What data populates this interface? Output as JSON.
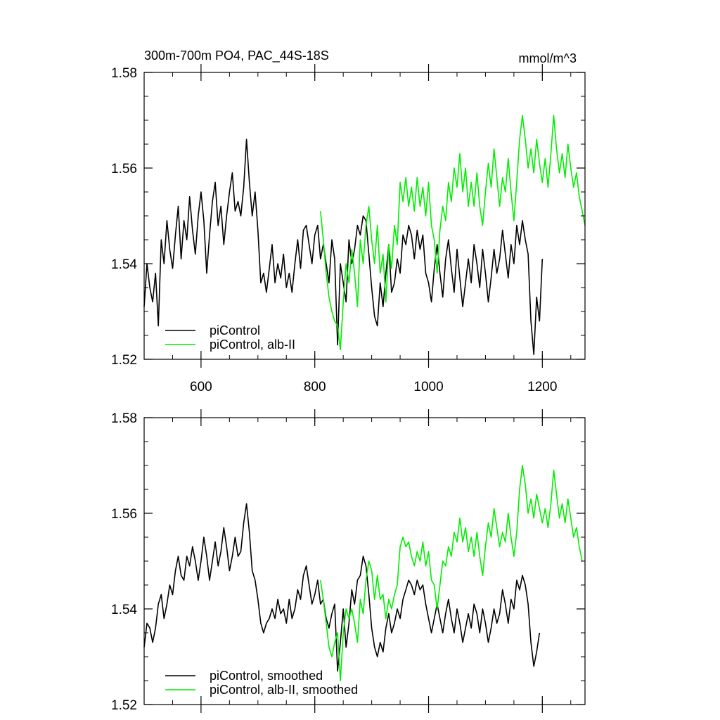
{
  "colors": {
    "control": "#000000",
    "alb": "#00ee00"
  },
  "chart_data": [
    {
      "type": "line",
      "title": "300m-700m PO4, PAC_44S-18S",
      "units": "mmol/m^3",
      "xlim": [
        500,
        1275
      ],
      "ylim": [
        1.52,
        1.58
      ],
      "xticks": [
        "600",
        "800",
        "1000",
        "1200"
      ],
      "xtick_values": [
        600,
        800,
        1000,
        1200
      ],
      "yticks": [
        "1.52",
        "1.54",
        "1.56",
        "1.58"
      ],
      "ytick_values": [
        1.52,
        1.54,
        1.56,
        1.58
      ],
      "legend_position": "bottom-left",
      "series": [
        {
          "name": "piControl",
          "color": "#000000",
          "x": [
            500,
            505,
            510,
            515,
            520,
            525,
            530,
            535,
            540,
            545,
            550,
            555,
            560,
            565,
            570,
            575,
            580,
            585,
            590,
            595,
            600,
            605,
            610,
            615,
            620,
            625,
            630,
            635,
            640,
            645,
            650,
            655,
            660,
            665,
            670,
            675,
            680,
            685,
            690,
            695,
            700,
            705,
            710,
            715,
            720,
            725,
            730,
            735,
            740,
            745,
            750,
            755,
            760,
            765,
            770,
            775,
            780,
            785,
            790,
            795,
            800,
            805,
            810,
            815,
            820,
            825,
            830,
            835,
            840,
            845,
            850,
            855,
            860,
            865,
            870,
            875,
            880,
            885,
            890,
            895,
            900,
            905,
            910,
            915,
            920,
            925,
            930,
            935,
            940,
            945,
            950,
            955,
            960,
            965,
            970,
            975,
            980,
            985,
            990,
            995,
            1000,
            1005,
            1010,
            1015,
            1020,
            1025,
            1030,
            1035,
            1040,
            1045,
            1050,
            1055,
            1060,
            1065,
            1070,
            1075,
            1080,
            1085,
            1090,
            1095,
            1100,
            1105,
            1110,
            1115,
            1120,
            1125,
            1130,
            1135,
            1140,
            1145,
            1150,
            1155,
            1160,
            1165,
            1170,
            1175,
            1180,
            1185,
            1190,
            1195,
            1200
          ],
          "y": [
            1.531,
            1.54,
            1.535,
            1.532,
            1.538,
            1.527,
            1.545,
            1.54,
            1.549,
            1.543,
            1.539,
            1.546,
            1.552,
            1.541,
            1.549,
            1.545,
            1.554,
            1.547,
            1.542,
            1.55,
            1.555,
            1.549,
            1.538,
            1.546,
            1.553,
            1.557,
            1.548,
            1.552,
            1.544,
            1.55,
            1.555,
            1.559,
            1.551,
            1.553,
            1.55,
            1.556,
            1.566,
            1.557,
            1.55,
            1.555,
            1.547,
            1.536,
            1.538,
            1.534,
            1.539,
            1.544,
            1.536,
            1.54,
            1.537,
            1.542,
            1.535,
            1.538,
            1.534,
            1.54,
            1.545,
            1.539,
            1.547,
            1.548,
            1.544,
            1.54,
            1.546,
            1.548,
            1.541,
            1.544,
            1.54,
            1.536,
            1.545,
            1.541,
            1.523,
            1.54,
            1.536,
            1.532,
            1.545,
            1.54,
            1.543,
            1.548,
            1.546,
            1.55,
            1.549,
            1.542,
            1.535,
            1.529,
            1.527,
            1.536,
            1.531,
            1.538,
            1.544,
            1.534,
            1.536,
            1.541,
            1.538,
            1.546,
            1.544,
            1.548,
            1.546,
            1.541,
            1.547,
            1.543,
            1.546,
            1.538,
            1.536,
            1.532,
            1.539,
            1.544,
            1.538,
            1.533,
            1.541,
            1.545,
            1.539,
            1.534,
            1.543,
            1.537,
            1.531,
            1.536,
            1.541,
            1.536,
            1.544,
            1.54,
            1.535,
            1.543,
            1.538,
            1.532,
            1.537,
            1.543,
            1.538,
            1.541,
            1.547,
            1.542,
            1.537,
            1.544,
            1.54,
            1.548,
            1.544,
            1.549,
            1.545,
            1.542,
            1.528,
            1.521,
            1.533,
            1.528,
            1.541
          ]
        },
        {
          "name": "piControl, alb-II",
          "color": "#00ee00",
          "x": [
            810,
            815,
            820,
            825,
            830,
            835,
            840,
            845,
            850,
            855,
            860,
            865,
            870,
            875,
            880,
            885,
            890,
            895,
            900,
            905,
            910,
            915,
            920,
            925,
            930,
            935,
            940,
            945,
            950,
            955,
            960,
            965,
            970,
            975,
            980,
            985,
            990,
            995,
            1000,
            1005,
            1010,
            1015,
            1020,
            1025,
            1030,
            1035,
            1040,
            1045,
            1050,
            1055,
            1060,
            1065,
            1070,
            1075,
            1080,
            1085,
            1090,
            1095,
            1100,
            1105,
            1110,
            1115,
            1120,
            1125,
            1130,
            1135,
            1140,
            1145,
            1150,
            1155,
            1160,
            1165,
            1170,
            1175,
            1180,
            1185,
            1190,
            1195,
            1200,
            1205,
            1210,
            1215,
            1220,
            1225,
            1230,
            1235,
            1240,
            1245,
            1250,
            1255,
            1260,
            1265,
            1270,
            1275
          ],
          "y": [
            1.551,
            1.545,
            1.538,
            1.533,
            1.53,
            1.528,
            1.527,
            1.522,
            1.532,
            1.54,
            1.536,
            1.543,
            1.538,
            1.531,
            1.545,
            1.54,
            1.548,
            1.552,
            1.545,
            1.54,
            1.548,
            1.538,
            1.542,
            1.532,
            1.544,
            1.539,
            1.548,
            1.544,
            1.557,
            1.553,
            1.558,
            1.552,
            1.556,
            1.551,
            1.558,
            1.552,
            1.556,
            1.55,
            1.557,
            1.548,
            1.545,
            1.538,
            1.547,
            1.552,
            1.549,
            1.557,
            1.553,
            1.56,
            1.556,
            1.563,
            1.555,
            1.56,
            1.552,
            1.557,
            1.552,
            1.559,
            1.552,
            1.548,
            1.555,
            1.561,
            1.556,
            1.564,
            1.558,
            1.552,
            1.558,
            1.555,
            1.562,
            1.555,
            1.549,
            1.557,
            1.566,
            1.571,
            1.566,
            1.56,
            1.564,
            1.559,
            1.566,
            1.561,
            1.557,
            1.562,
            1.556,
            1.563,
            1.571,
            1.564,
            1.559,
            1.563,
            1.558,
            1.565,
            1.56,
            1.556,
            1.559,
            1.554,
            1.551,
            1.548
          ]
        }
      ]
    },
    {
      "type": "line",
      "xlim": [
        500,
        1275
      ],
      "ylim": [
        1.52,
        1.58
      ],
      "xtick_values": [
        600,
        800,
        1000,
        1200
      ],
      "yticks": [
        "1.52",
        "1.54",
        "1.56",
        "1.58"
      ],
      "ytick_values": [
        1.52,
        1.54,
        1.56,
        1.58
      ],
      "legend_position": "bottom-left",
      "series": [
        {
          "name": "piControl, smoothed",
          "color": "#000000",
          "x": [
            500,
            505,
            510,
            515,
            520,
            525,
            530,
            535,
            540,
            545,
            550,
            555,
            560,
            565,
            570,
            575,
            580,
            585,
            590,
            595,
            600,
            605,
            610,
            615,
            620,
            625,
            630,
            635,
            640,
            645,
            650,
            655,
            660,
            665,
            670,
            675,
            680,
            685,
            690,
            695,
            700,
            705,
            710,
            715,
            720,
            725,
            730,
            735,
            740,
            745,
            750,
            755,
            760,
            765,
            770,
            775,
            780,
            785,
            790,
            795,
            800,
            805,
            810,
            815,
            820,
            825,
            830,
            835,
            840,
            845,
            850,
            855,
            860,
            865,
            870,
            875,
            880,
            885,
            890,
            895,
            900,
            905,
            910,
            915,
            920,
            925,
            930,
            935,
            940,
            945,
            950,
            955,
            960,
            965,
            970,
            975,
            980,
            985,
            990,
            995,
            1000,
            1005,
            1010,
            1015,
            1020,
            1025,
            1030,
            1035,
            1040,
            1045,
            1050,
            1055,
            1060,
            1065,
            1070,
            1075,
            1080,
            1085,
            1090,
            1095,
            1100,
            1105,
            1110,
            1115,
            1120,
            1125,
            1130,
            1135,
            1140,
            1145,
            1150,
            1155,
            1160,
            1165,
            1170,
            1175,
            1180,
            1185,
            1190,
            1195
          ],
          "y": [
            1.532,
            1.537,
            1.536,
            1.533,
            1.536,
            1.541,
            1.543,
            1.538,
            1.541,
            1.545,
            1.543,
            1.548,
            1.551,
            1.547,
            1.546,
            1.551,
            1.549,
            1.553,
            1.55,
            1.546,
            1.55,
            1.555,
            1.551,
            1.546,
            1.55,
            1.554,
            1.549,
            1.552,
            1.557,
            1.553,
            1.548,
            1.551,
            1.555,
            1.551,
            1.552,
            1.558,
            1.562,
            1.556,
            1.548,
            1.546,
            1.542,
            1.537,
            1.535,
            1.537,
            1.538,
            1.54,
            1.538,
            1.542,
            1.539,
            1.54,
            1.537,
            1.542,
            1.538,
            1.54,
            1.544,
            1.542,
            1.547,
            1.549,
            1.545,
            1.541,
            1.543,
            1.546,
            1.541,
            1.542,
            1.538,
            1.536,
            1.539,
            1.541,
            1.527,
            1.533,
            1.54,
            1.532,
            1.537,
            1.544,
            1.541,
            1.546,
            1.547,
            1.551,
            1.549,
            1.543,
            1.536,
            1.532,
            1.53,
            1.533,
            1.531,
            1.536,
            1.539,
            1.535,
            1.537,
            1.54,
            1.538,
            1.542,
            1.544,
            1.546,
            1.545,
            1.543,
            1.546,
            1.544,
            1.545,
            1.541,
            1.538,
            1.535,
            1.538,
            1.541,
            1.538,
            1.535,
            1.539,
            1.542,
            1.538,
            1.535,
            1.54,
            1.537,
            1.533,
            1.536,
            1.539,
            1.536,
            1.541,
            1.539,
            1.535,
            1.54,
            1.537,
            1.533,
            1.536,
            1.54,
            1.537,
            1.539,
            1.544,
            1.541,
            1.537,
            1.542,
            1.54,
            1.546,
            1.544,
            1.547,
            1.545,
            1.541,
            1.533,
            1.528,
            1.531,
            1.535
          ]
        },
        {
          "name": "piControl, alb-II, smoothed",
          "color": "#00ee00",
          "x": [
            810,
            815,
            820,
            825,
            830,
            835,
            840,
            845,
            850,
            855,
            860,
            865,
            870,
            875,
            880,
            885,
            890,
            895,
            900,
            905,
            910,
            915,
            920,
            925,
            930,
            935,
            940,
            945,
            950,
            955,
            960,
            965,
            970,
            975,
            980,
            985,
            990,
            995,
            1000,
            1005,
            1010,
            1015,
            1020,
            1025,
            1030,
            1035,
            1040,
            1045,
            1050,
            1055,
            1060,
            1065,
            1070,
            1075,
            1080,
            1085,
            1090,
            1095,
            1100,
            1105,
            1110,
            1115,
            1120,
            1125,
            1130,
            1135,
            1140,
            1145,
            1150,
            1155,
            1160,
            1165,
            1170,
            1175,
            1180,
            1185,
            1190,
            1195,
            1200,
            1205,
            1210,
            1215,
            1220,
            1225,
            1230,
            1235,
            1240,
            1245,
            1250,
            1255,
            1260,
            1265,
            1270
          ],
          "y": [
            1.546,
            1.542,
            1.537,
            1.532,
            1.53,
            1.533,
            1.535,
            1.525,
            1.535,
            1.54,
            1.538,
            1.54,
            1.537,
            1.533,
            1.542,
            1.539,
            1.546,
            1.55,
            1.548,
            1.542,
            1.547,
            1.542,
            1.543,
            1.538,
            1.542,
            1.54,
            1.543,
            1.545,
            1.553,
            1.555,
            1.553,
            1.554,
            1.551,
            1.549,
            1.552,
            1.55,
            1.554,
            1.549,
            1.552,
            1.546,
            1.545,
            1.54,
            1.545,
            1.55,
            1.549,
            1.553,
            1.551,
            1.556,
            1.554,
            1.559,
            1.554,
            1.557,
            1.552,
            1.555,
            1.551,
            1.556,
            1.551,
            1.547,
            1.553,
            1.558,
            1.555,
            1.561,
            1.557,
            1.553,
            1.556,
            1.554,
            1.56,
            1.555,
            1.551,
            1.556,
            1.565,
            1.57,
            1.566,
            1.56,
            1.563,
            1.559,
            1.564,
            1.561,
            1.558,
            1.561,
            1.557,
            1.562,
            1.569,
            1.564,
            1.559,
            1.562,
            1.558,
            1.563,
            1.559,
            1.555,
            1.557,
            1.553,
            1.55
          ]
        }
      ]
    }
  ]
}
